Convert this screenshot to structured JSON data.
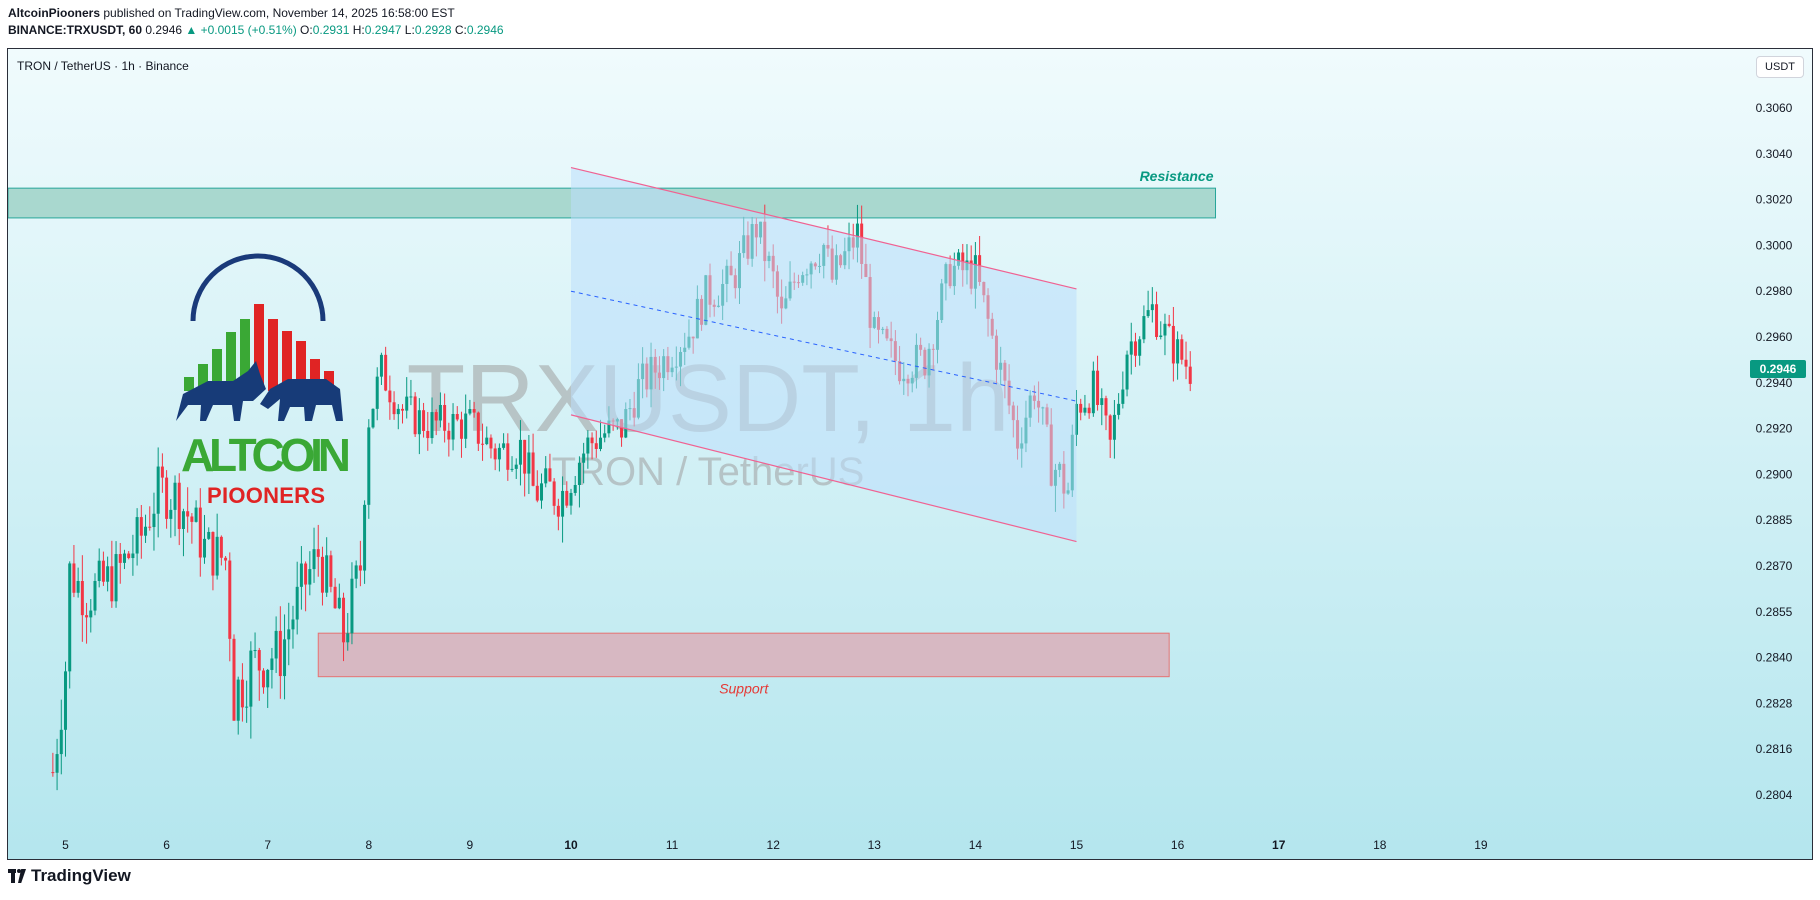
{
  "header": {
    "author": "AltcoinPiooners",
    "published": " published on TradingView.com, November 14, 2025 16:58:00 EST",
    "symbol": "BINANCE:TRXUSDT, 60",
    "last": "0.2946",
    "change": "▲ +0.0015 (+0.51%)",
    "o_label": "O:",
    "o": "0.2931",
    "h_label": "H:",
    "h": "0.2947",
    "l_label": "L:",
    "l": "0.2928",
    "c_label": "C:",
    "c": "0.2946"
  },
  "chart_title": "TRON / TetherUS · 1h · Binance",
  "currency": "USDT",
  "watermark": {
    "symbol": "TRXUSDT, 1h",
    "name": "TRON / TetherUS"
  },
  "logo": {
    "line1": "ALTCOIN",
    "line2": "PIOONERS"
  },
  "footer": {
    "brand": "TradingView"
  },
  "colors": {
    "up": "#089981",
    "down": "#f23645",
    "channel_fill": "#bbdefb",
    "channel_line": "#f06292",
    "resistance_fill": "#a5d6cc",
    "support_fill": "#d7b8c2",
    "bg_top": "#f0fbfd",
    "bg_bottom": "#b4e6ee"
  },
  "chart_data": {
    "type": "candlestick",
    "x_labels": [
      "5",
      "6",
      "7",
      "8",
      "9",
      "10",
      "11",
      "12",
      "13",
      "14",
      "15",
      "16",
      "17",
      "18",
      "19"
    ],
    "y_ticks": [
      "0.3060",
      "0.3040",
      "0.3020",
      "0.3000",
      "0.2980",
      "0.2960",
      "0.2940",
      "0.2920",
      "0.2900",
      "0.2885",
      "0.2870",
      "0.2855",
      "0.2840",
      "0.2828",
      "0.2816",
      "0.2804"
    ],
    "last_price_label": "0.2946",
    "annotations": {
      "resistance": "Resistance",
      "support": "Support"
    },
    "resistance_zone": [
      0.3012,
      0.3025
    ],
    "support_zone": [
      0.2835,
      0.2848
    ],
    "channel": {
      "upper": {
        "start": [
          "Oct 10 00:00",
          0.3034
        ],
        "end": [
          "Oct 14 24:00",
          0.2981
        ]
      },
      "lower": {
        "start": [
          "Oct 10 00:00",
          0.2926
        ],
        "end": [
          "Oct 14 24:00",
          0.2878
        ]
      },
      "mid": {
        "start": [
          "Oct 10 00:00",
          0.298
        ],
        "end": [
          "Oct 14 24:00",
          0.2932
        ]
      }
    },
    "price_path": [
      [
        "Oct 4 21:00",
        0.281
      ],
      [
        "Oct 5 00:00",
        0.2838
      ],
      [
        "Oct 5 01:00",
        0.2868
      ],
      [
        "Oct 5 05:00",
        0.286
      ],
      [
        "Oct 5 12:00",
        0.2867
      ],
      [
        "Oct 5 18:00",
        0.288
      ],
      [
        "Oct 5 22:00",
        0.2895
      ],
      [
        "Oct 6 02:00",
        0.2893
      ],
      [
        "Oct 6 06:00",
        0.2885
      ],
      [
        "Oct 6 09:00",
        0.2876
      ],
      [
        "Oct 6 14:00",
        0.2872
      ],
      [
        "Oct 6 16:00",
        0.283
      ],
      [
        "Oct 6 20:00",
        0.2838
      ],
      [
        "Oct 7 03:00",
        0.2842
      ],
      [
        "Oct 7 08:00",
        0.2862
      ],
      [
        "Oct 7 12:00",
        0.2874
      ],
      [
        "Oct 7 15:00",
        0.286
      ],
      [
        "Oct 7 18:00",
        0.2847
      ],
      [
        "Oct 7 22:00",
        0.287
      ],
      [
        "Oct 8 00:00",
        0.2925
      ],
      [
        "Oct 8 03:00",
        0.2945
      ],
      [
        "Oct 8 08:00",
        0.2928
      ],
      [
        "Oct 8 14:00",
        0.2922
      ],
      [
        "Oct 9 00:00",
        0.2922
      ],
      [
        "Oct 9 06:00",
        0.291
      ],
      [
        "Oct 9 12:00",
        0.2912
      ],
      [
        "Oct 9 15:00",
        0.2895
      ],
      [
        "Oct 9 22:00",
        0.2894
      ],
      [
        "Oct 10 04:00",
        0.2913
      ],
      [
        "Oct 10 08:00",
        0.2918
      ],
      [
        "Oct 10 12:00",
        0.292
      ],
      [
        "Oct 10 16:00",
        0.2938
      ],
      [
        "Oct 10 22:00",
        0.295
      ],
      [
        "Oct 11 04:00",
        0.2962
      ],
      [
        "Oct 11 08:00",
        0.2978
      ],
      [
        "Oct 11 14:00",
        0.2984
      ],
      [
        "Oct 11 18:00",
        0.3
      ],
      [
        "Oct 11 20:00",
        0.3008
      ],
      [
        "Oct 12 00:00",
        0.2985
      ],
      [
        "Oct 12 02:00",
        0.2968
      ],
      [
        "Oct 12 06:00",
        0.299
      ],
      [
        "Oct 12 12:00",
        0.3
      ],
      [
        "Oct 12 14:00",
        0.2985
      ],
      [
        "Oct 12 20:00",
        0.3005
      ],
      [
        "Oct 13 00:00",
        0.296
      ],
      [
        "Oct 13 06:00",
        0.2948
      ],
      [
        "Oct 13 12:00",
        0.295
      ],
      [
        "Oct 13 18:00",
        0.299
      ],
      [
        "Oct 14 00:00",
        0.2988
      ],
      [
        "Oct 14 06:00",
        0.2945
      ],
      [
        "Oct 14 10:00",
        0.2915
      ],
      [
        "Oct 14 14:00",
        0.2938
      ],
      [
        "Oct 14 18:00",
        0.2905
      ],
      [
        "Oct 14 22:00",
        0.2895
      ],
      [
        "Oct 15 00:00",
        0.293
      ],
      [
        "Oct 15 04:00",
        0.2937
      ],
      [
        "Oct 15 08:00",
        0.2912
      ],
      [
        "Oct 15 12:00",
        0.2955
      ],
      [
        "Oct 15 18:00",
        0.2972
      ],
      [
        "Oct 15 22:00",
        0.2958
      ],
      [
        "Oct 16 03:00",
        0.2946
      ]
    ]
  }
}
